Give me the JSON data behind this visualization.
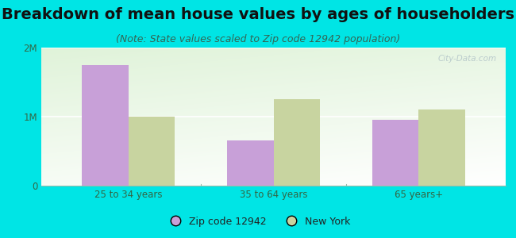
{
  "title": "Breakdown of mean house values by ages of householders",
  "subtitle": "(Note: State values scaled to Zip code 12942 population)",
  "categories": [
    "25 to 34 years",
    "35 to 64 years",
    "65 years+"
  ],
  "zip_values": [
    1750000,
    650000,
    950000
  ],
  "ny_values": [
    1000000,
    1250000,
    1100000
  ],
  "zip_color": "#c8a0d8",
  "ny_color": "#c8d4a0",
  "background_color": "#00e5e5",
  "ylim": [
    0,
    2000000
  ],
  "yticks": [
    0,
    1000000,
    2000000
  ],
  "ytick_labels": [
    "0",
    "1M",
    "2M"
  ],
  "legend_zip_label": "Zip code 12942",
  "legend_ny_label": "New York",
  "title_fontsize": 14,
  "subtitle_fontsize": 9,
  "bar_width": 0.32
}
